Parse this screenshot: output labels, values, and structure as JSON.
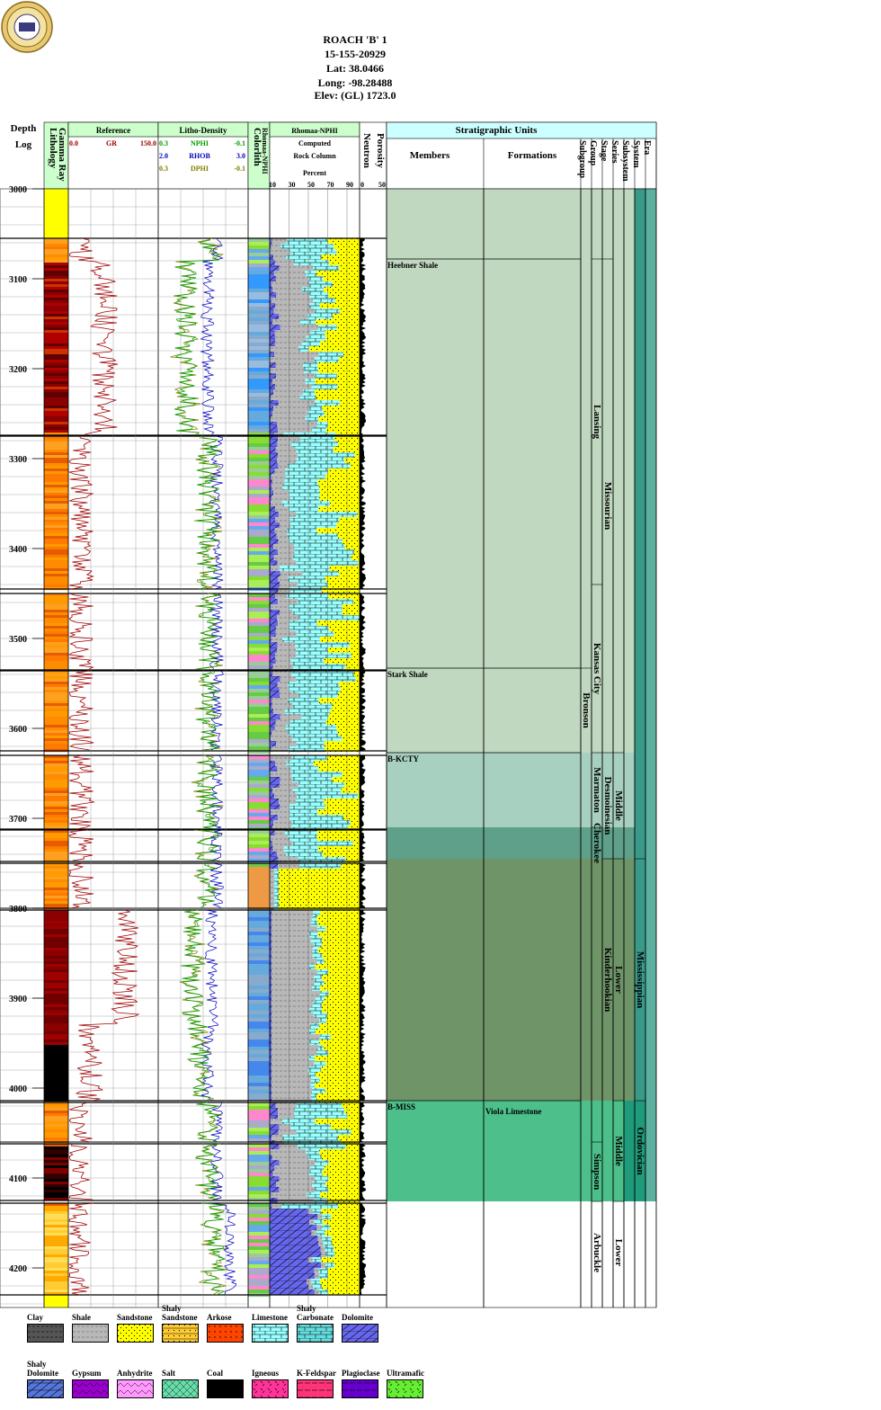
{
  "header": {
    "well_name": "ROACH 'B' 1",
    "api": "15-155-20929",
    "lat": "Lat: 38.0466",
    "long": "Long: -98.28488",
    "elev": "Elev: (GL) 1723.0"
  },
  "tracks": {
    "depth_label_1": "Depth",
    "depth_label_2": "Log",
    "lithology": "Lithology",
    "gamma": "Gamma Ray",
    "reference": "Reference",
    "ref_min": "0.0",
    "ref_curve": "GR",
    "ref_max": "150.0",
    "litho_density": "Litho-Density",
    "nphi_min": "0.3",
    "nphi_name": "NPHI",
    "nphi_max": "-0.1",
    "rhob_min": "2.0",
    "rhob_name": "RHOB",
    "rhob_max": "3.0",
    "dphi_min": "0.3",
    "dphi_name": "DPHI",
    "dphi_max": "-0.1",
    "colorlith": "Colorlith",
    "colorlith_sub": "Rhomaa-NPHI",
    "rhomaa": "Rhomaa-NPHI",
    "computed": "Computed",
    "rock_column": "Rock Column",
    "percent": "Percent",
    "pct_ticks": [
      "10",
      "30",
      "50",
      "70",
      "90"
    ],
    "neutron": "Neutron",
    "porosity": "Porosity",
    "por_min": "0",
    "por_max": "50",
    "strat_units": "Stratigraphic Units",
    "members": "Members",
    "formations": "Formations",
    "rank_headers": [
      "Subgroup",
      "Group",
      "Stage",
      "Series",
      "Subsystem",
      "System",
      "Era"
    ]
  },
  "colors": {
    "gr_curve": "#a00000",
    "nphi": "#00a000",
    "rhob": "#0000c0",
    "dphi": "#808000",
    "header_green": "#ccffcc",
    "header_cyan": "#ccffff",
    "sand": "#ffff00",
    "lime": "#99ffff",
    "dolo": "#6666ee",
    "shale": "#b8b8b8"
  },
  "chart_data": {
    "type": "well-log",
    "depth_range": [
      3000,
      4240
    ],
    "depth_ticks": [
      3000,
      3100,
      3200,
      3300,
      3400,
      3500,
      3600,
      3700,
      3800,
      3900,
      4000,
      4100,
      4200
    ],
    "gr_range": [
      0,
      150
    ],
    "nphi_range": [
      0.3,
      -0.1
    ],
    "rhob_range": [
      2.0,
      3.0
    ],
    "porosity_range": [
      0,
      50
    ],
    "tops": [
      {
        "name": "Heebner Shale",
        "depth": 3078
      },
      {
        "name": "Stark Shale",
        "depth": 3533
      },
      {
        "name": "B-KCTY",
        "depth": 3627
      },
      {
        "name": "B-MISS",
        "depth": 4014
      }
    ],
    "formations": [
      {
        "name": "Viola Limestone",
        "depth": 4019
      }
    ],
    "stratigraphy": [
      {
        "label": "Lansing",
        "rank": "Group",
        "top": 3078,
        "base": 3440
      },
      {
        "label": "Kansas City",
        "rank": "Group",
        "top": 3440,
        "base": 3627
      },
      {
        "label": "Bronson",
        "rank": "Subgroup",
        "top": 3533,
        "base": 3627
      },
      {
        "label": "Missourian",
        "rank": "Stage",
        "top": 3078,
        "base": 3627
      },
      {
        "label": "Marmaton",
        "rank": "Group",
        "top": 3627,
        "base": 3710
      },
      {
        "label": "Cherokee",
        "rank": "Group",
        "top": 3710,
        "base": 3745
      },
      {
        "label": "Desmoinesian",
        "rank": "Stage",
        "top": 3627,
        "base": 3745
      },
      {
        "label": "Middle",
        "rank": "Series",
        "top": 3627,
        "base": 3745
      },
      {
        "label": "Kinderhookian",
        "rank": "Stage",
        "top": 3745,
        "base": 4014
      },
      {
        "label": "Lower",
        "rank": "Series",
        "top": 3745,
        "base": 4014
      },
      {
        "label": "Mississippian",
        "rank": "System",
        "top": 3745,
        "base": 4014
      },
      {
        "label": "Simpson",
        "rank": "Group",
        "top": 4060,
        "base": 4126
      },
      {
        "label": "Middle",
        "rank": "Series",
        "top": 4014,
        "base": 4126
      },
      {
        "label": "Ordovician",
        "rank": "System",
        "top": 4014,
        "base": 4126
      },
      {
        "label": "Arbuckle",
        "rank": "Group",
        "top": 4126,
        "base": 4240
      },
      {
        "label": "Lower",
        "rank": "Series",
        "top": 4126,
        "base": 4240
      }
    ],
    "legend": [
      "Clay",
      "Shale",
      "Sandstone",
      "Shaly Sandstone",
      "Arkose",
      "Limestone",
      "Shaly Carbonate",
      "Dolomite",
      "Shaly Dolomite",
      "Gypsum",
      "Anhydrite",
      "Salt",
      "Coal",
      "Igneous",
      "K-Feldspar",
      "Plagioclase",
      "Ultramafic"
    ]
  }
}
